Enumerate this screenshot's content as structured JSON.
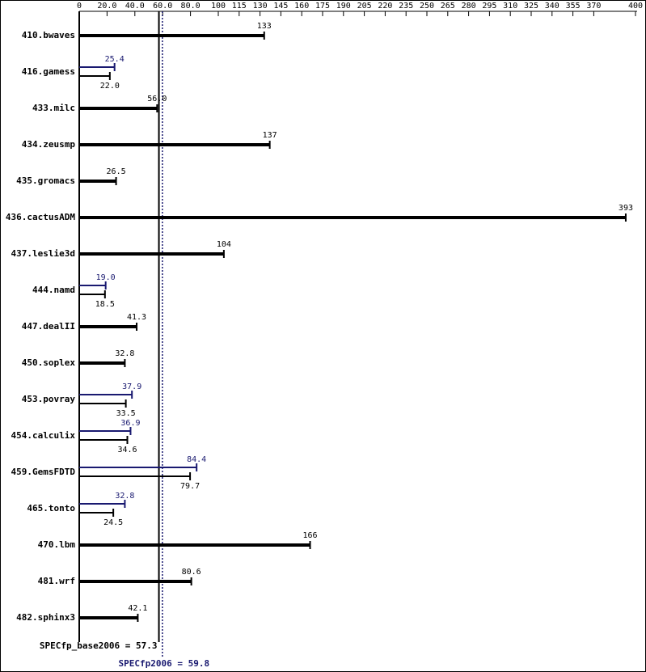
{
  "chart_data": {
    "type": "bar",
    "orientation": "horizontal",
    "categories": [
      "410.bwaves",
      "416.gamess",
      "433.milc",
      "434.zeusmp",
      "435.gromacs",
      "436.cactusADM",
      "437.leslie3d",
      "444.namd",
      "447.dealII",
      "450.soplex",
      "453.povray",
      "454.calculix",
      "459.GemsFDTD",
      "465.tonto",
      "470.lbm",
      "481.wrf",
      "482.sphinx3"
    ],
    "base": {
      "color": "#000000",
      "values": [
        133,
        22.0,
        56.0,
        137,
        26.5,
        393,
        104,
        18.5,
        41.3,
        32.8,
        33.5,
        34.6,
        79.7,
        24.5,
        166,
        80.6,
        42.1
      ],
      "value_labels": [
        "133",
        "22.0",
        "56.0",
        "137",
        "26.5",
        "393",
        "104",
        "18.5",
        "41.3",
        "32.8",
        "33.5",
        "34.6",
        "79.7",
        "24.5",
        "166",
        "80.6",
        "42.1"
      ]
    },
    "peak": {
      "color": "#191970",
      "values": [
        null,
        25.4,
        null,
        null,
        null,
        null,
        null,
        19.0,
        null,
        null,
        37.9,
        36.9,
        84.4,
        32.8,
        null,
        null,
        null
      ],
      "value_labels": [
        null,
        "25.4",
        null,
        null,
        null,
        null,
        null,
        "19.0",
        null,
        null,
        "37.9",
        "36.9",
        "84.4",
        "32.8",
        null,
        null,
        null
      ]
    },
    "xlim": [
      0,
      400
    ],
    "xticks": [
      0,
      {
        "value": 20,
        "label": "20.0"
      },
      {
        "value": 40,
        "label": "40.0"
      },
      {
        "value": 60,
        "label": "60.0"
      },
      {
        "value": 80,
        "label": "80.0"
      },
      100,
      115,
      130,
      145,
      160,
      175,
      190,
      205,
      220,
      235,
      250,
      265,
      280,
      295,
      310,
      325,
      340,
      355,
      370,
      400
    ],
    "reference_lines": [
      {
        "label": "SPECfp_base2006 = 57.3",
        "value": 57.3,
        "color": "#000000"
      },
      {
        "label": "SPECfp2006 = 59.8",
        "value": 59.8,
        "color": "#191970"
      }
    ]
  }
}
